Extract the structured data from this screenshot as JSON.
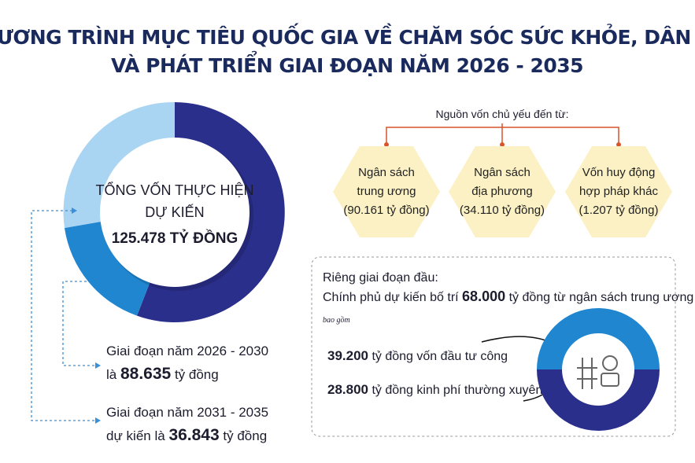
{
  "header": {
    "title_line1": "CHƯƠNG TRÌNH MỤC TIÊU QUỐC GIA VỀ CHĂM SÓC SỨC KHỎE, DÂN SỐ",
    "title_line2": "VÀ PHÁT TRIỂN GIAI ĐOẠN NĂM 2026 - 2035"
  },
  "total": {
    "line1": "TỔNG VỐN THỰC HIỆN",
    "line2": "DỰ KIẾN",
    "amount": "125.478",
    "unit": "TỶ ĐỒNG"
  },
  "phases": [
    {
      "line1": "Giai đoạn năm 2026 - 2030",
      "prefix": "là",
      "amount": "88.635",
      "unit": "tỷ đồng"
    },
    {
      "line1": "Giai đoạn năm 2031 - 2035",
      "prefix": "dự kiến là",
      "amount": "36.843",
      "unit": "tỷ đồng"
    }
  ],
  "sources": {
    "heading": "Nguồn vốn chủ yếu đến từ:",
    "items": [
      {
        "lines": [
          "Ngân sách",
          "trung ương"
        ],
        "amount": "(90.161 tỷ đồng)"
      },
      {
        "lines": [
          "Ngân sách",
          "địa phương"
        ],
        "amount": "(34.110 tỷ đồng)"
      },
      {
        "lines": [
          "Vốn huy động",
          "hợp pháp khác"
        ],
        "amount": "(1.207 tỷ đồng)"
      }
    ]
  },
  "first_phase": {
    "heading": "Riêng giai đoạn đầu:",
    "prefix": "Chính phủ dự kiến bố trí",
    "amount": "68.000",
    "suffix": "tỷ đồng từ ngân sách trung ương",
    "includes": "bao gồm",
    "items": [
      {
        "amount": "39.200",
        "text": "tỷ đồng vốn đầu tư công"
      },
      {
        "amount": "28.800",
        "text": "tỷ đồng kinh phí thường xuyên"
      }
    ]
  }
}
